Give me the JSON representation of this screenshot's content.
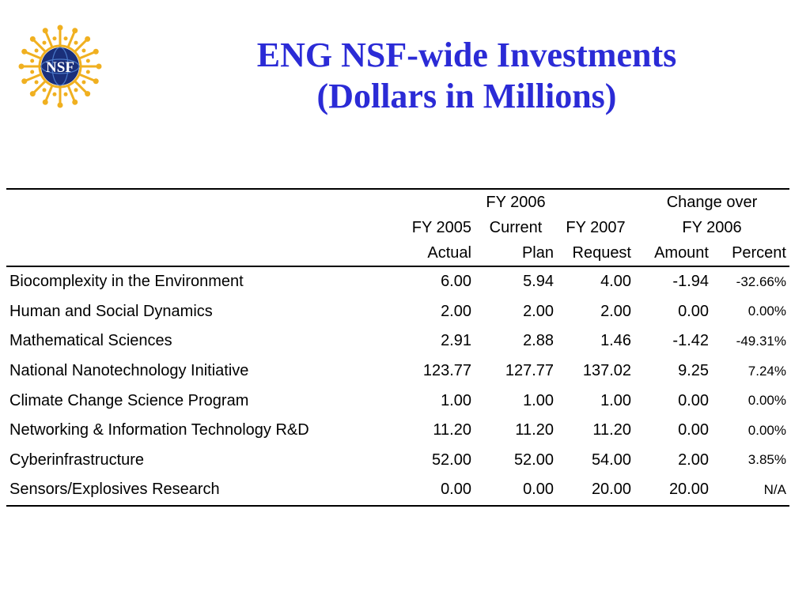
{
  "title": {
    "line1": "ENG NSF-wide Investments",
    "line2": "(Dollars in Millions)"
  },
  "logo": {
    "text": "NSF",
    "icon": "nsf-seal-icon",
    "colors": {
      "gold": "#f0b020",
      "navy": "#1a2f7a"
    }
  },
  "table": {
    "header": {
      "row1": {
        "fy2006": "FY 2006",
        "change": "Change over"
      },
      "row2": {
        "fy2005": "FY 2005",
        "current": "Current",
        "fy2007": "FY 2007",
        "change_fy": "FY 2006"
      },
      "row3": {
        "actual": "Actual",
        "plan": "Plan",
        "request": "Request",
        "amount": "Amount",
        "percent": "Percent"
      }
    },
    "rows": [
      {
        "name": "Biocomplexity in the Environment",
        "fy2005": "6.00",
        "fy2006": "5.94",
        "fy2007": "4.00",
        "amount": "-1.94",
        "percent": "-32.66%"
      },
      {
        "name": "Human and Social Dynamics",
        "fy2005": "2.00",
        "fy2006": "2.00",
        "fy2007": "2.00",
        "amount": "0.00",
        "percent": "0.00%"
      },
      {
        "name": "Mathematical Sciences",
        "fy2005": "2.91",
        "fy2006": "2.88",
        "fy2007": "1.46",
        "amount": "-1.42",
        "percent": "-49.31%"
      },
      {
        "name": "National Nanotechnology Initiative",
        "fy2005": "123.77",
        "fy2006": "127.77",
        "fy2007": "137.02",
        "amount": "9.25",
        "percent": "7.24%"
      },
      {
        "name": "Climate Change Science Program",
        "fy2005": "1.00",
        "fy2006": "1.00",
        "fy2007": "1.00",
        "amount": "0.00",
        "percent": "0.00%"
      },
      {
        "name": "Networking & Information Technology R&D",
        "fy2005": "11.20",
        "fy2006": "11.20",
        "fy2007": "11.20",
        "amount": "0.00",
        "percent": "0.00%"
      },
      {
        "name": "Cyberinfrastructure",
        "fy2005": "52.00",
        "fy2006": "52.00",
        "fy2007": "54.00",
        "amount": "2.00",
        "percent": "3.85%"
      },
      {
        "name": "Sensors/Explosives Research",
        "fy2005": "0.00",
        "fy2006": "0.00",
        "fy2007": "20.00",
        "amount": "20.00",
        "percent": "N/A"
      }
    ]
  }
}
